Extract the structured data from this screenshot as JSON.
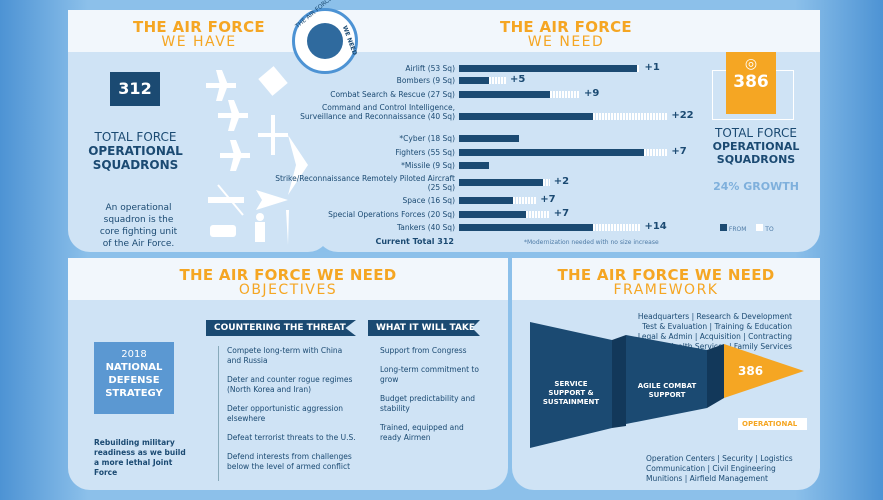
{
  "have": {
    "title": "THE AIR FORCE",
    "subtitle": "WE HAVE",
    "count": "312",
    "label1": "TOTAL FORCE",
    "label2": "OPERATIONAL",
    "label3": "SQUADRONS",
    "desc": "An operational squadron is the core fighting unit of the Air Force.",
    "icons": [
      "airplane-icon",
      "satellite-icon",
      "airplane-icon",
      "drone-icon",
      "airplane-icon",
      "bomber-icon",
      "helicopter-icon",
      "fighter-jet-icon",
      "vehicle-icon",
      "soldier-icon",
      "missile-icon"
    ]
  },
  "seal": {
    "text1": "THE AIR FORCE",
    "text2": "WE NEED"
  },
  "need": {
    "title": "THE AIR FORCE",
    "subtitle": "WE NEED",
    "count": "386",
    "label1": "TOTAL FORCE",
    "label2": "OPERATIONAL",
    "label3": "SQUADRONS",
    "growth": "24% GROWTH",
    "legend_from": "FROM",
    "legend_to": "TO",
    "total": "Current Total 312",
    "footnote": "*Modernization needed with no size increase"
  },
  "chart_data": {
    "type": "bar",
    "orientation": "horizontal",
    "stacked": true,
    "categories": [
      "Airlift (53 Sq)",
      "Bombers (9 Sq)",
      "Combat Search & Rescue (27 Sq)",
      "Command and Control Intelligence, Surveillance and Reconnaissance (40 Sq)",
      "*Cyber (18 Sq)",
      "Fighters (55 Sq)",
      "*Missile (9 Sq)",
      "Strike/Reconnaissance Remotely Piloted Aircraft (25 Sq)",
      "Space (16 Sq)",
      "Special Operations Forces (20 Sq)",
      "Tankers (40 Sq)"
    ],
    "series": [
      {
        "name": "FROM",
        "values": [
          53,
          9,
          27,
          40,
          18,
          55,
          9,
          25,
          16,
          20,
          40
        ]
      },
      {
        "name": "TO",
        "values": [
          1,
          5,
          9,
          22,
          0,
          7,
          0,
          2,
          7,
          7,
          14
        ]
      }
    ],
    "data_labels": [
      "+1",
      "+5",
      "+9",
      "+22",
      "",
      "+7",
      "",
      "+2",
      "+7",
      "+7",
      "+14"
    ],
    "colors": {
      "from": "#1b4a72",
      "to": "#ffffff"
    },
    "legend": "right"
  },
  "objectives": {
    "title": "THE AIR FORCE WE NEED",
    "subtitle": "OBJECTIVES",
    "nds_year": "2018",
    "nds": "NATIONAL DEFENSE STRATEGY",
    "note": "Rebuilding military readiness as we build a more lethal Joint Force",
    "threat_title": "COUNTERING THE THREAT",
    "threats": [
      "Compete long-term with China and Russia",
      "Deter and counter rogue regimes (North Korea and Iran)",
      "Deter opportunistic aggression elsewhere",
      "Defeat terrorist threats to the U.S.",
      "Defend interests from challenges below the level of armed conflict"
    ],
    "take_title": "WHAT IT WILL TAKE",
    "takes": [
      "Support from Congress",
      "Long-term commitment to grow",
      "Budget predictability and stability",
      "Trained, equipped and ready Airmen"
    ]
  },
  "framework": {
    "title": "THE AIR FORCE WE NEED",
    "subtitle": "FRAMEWORK",
    "top": [
      "Headquarters | Research & Development",
      "Test & Evaluation | Training & Education",
      "Legal & Admin | Acquisition | Contracting",
      "Health Services | Family Services"
    ],
    "block1": "SERVICE SUPPORT & SUSTAINMENT",
    "block2": "AGILE COMBAT SUPPORT",
    "count": "386",
    "operational": "OPERATIONAL",
    "bottom": [
      "Operation Centers | Security | Logistics",
      "Communication | Civil Engineering",
      "Munitions | Airfield Management"
    ]
  }
}
